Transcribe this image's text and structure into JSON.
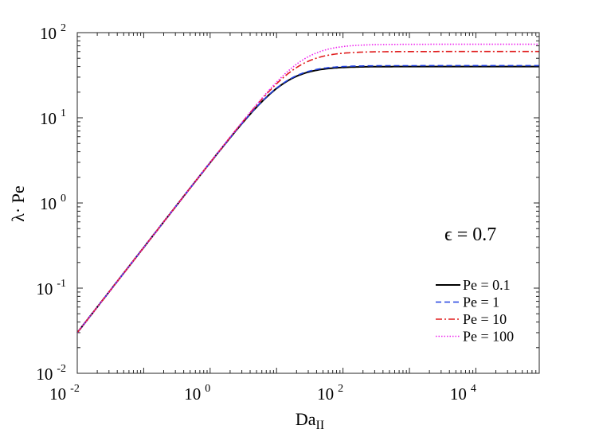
{
  "chart_data": {
    "type": "line",
    "xscale": "log",
    "yscale": "log",
    "xlim": [
      0.01,
      90000
    ],
    "ylim": [
      0.01,
      100
    ],
    "x_ticks": [
      {
        "base": "10",
        "exp": "-2",
        "value": 0.01
      },
      {
        "base": "10",
        "exp": "0",
        "value": 1
      },
      {
        "base": "10",
        "exp": "2",
        "value": 100
      },
      {
        "base": "10",
        "exp": "4",
        "value": 10000
      }
    ],
    "y_ticks": [
      {
        "base": "10",
        "exp": "-2",
        "value": 0.01
      },
      {
        "base": "10",
        "exp": "-1",
        "value": 0.1
      },
      {
        "base": "10",
        "exp": "0",
        "value": 1
      },
      {
        "base": "10",
        "exp": "1",
        "value": 10
      },
      {
        "base": "10",
        "exp": "2",
        "value": 100
      }
    ],
    "xlabel_main": "Da",
    "xlabel_sub": "II",
    "ylabel": "λ· Pe",
    "annotation": "ϵ = 0.7",
    "legend_position": "bottom-right",
    "series": [
      {
        "name": "Pe = 0.1",
        "color": "#000000",
        "style": "solid",
        "plateau": 40,
        "x": [
          0.01,
          0.1,
          1,
          3,
          10,
          30,
          100,
          1000,
          10000,
          90000
        ],
        "y": [
          0.03,
          0.3,
          3,
          8.2,
          20.5,
          32.5,
          38.6,
          40,
          40,
          40
        ]
      },
      {
        "name": "Pe = 1",
        "color": "#1f3fe0",
        "style": "dashed",
        "plateau": 41,
        "x": [
          0.01,
          0.1,
          1,
          3,
          10,
          30,
          100,
          1000,
          10000,
          90000
        ],
        "y": [
          0.03,
          0.3,
          3,
          8.3,
          20.9,
          33.2,
          39.5,
          41,
          41,
          41
        ]
      },
      {
        "name": "Pe = 10",
        "color": "#e01b1b",
        "style": "dashdot",
        "plateau": 60,
        "x": [
          0.01,
          0.1,
          1,
          3,
          10,
          30,
          100,
          1000,
          10000,
          90000
        ],
        "y": [
          0.03,
          0.3,
          3,
          8.6,
          24,
          43,
          55,
          59.5,
          60,
          60
        ]
      },
      {
        "name": "Pe = 100",
        "color": "#ee22ee",
        "style": "dotted",
        "plateau": 73,
        "x": [
          0.01,
          0.1,
          1,
          3,
          10,
          30,
          100,
          1000,
          10000,
          90000
        ],
        "y": [
          0.03,
          0.3,
          3,
          8.7,
          25.5,
          49,
          65,
          72,
          73,
          73
        ]
      }
    ]
  }
}
